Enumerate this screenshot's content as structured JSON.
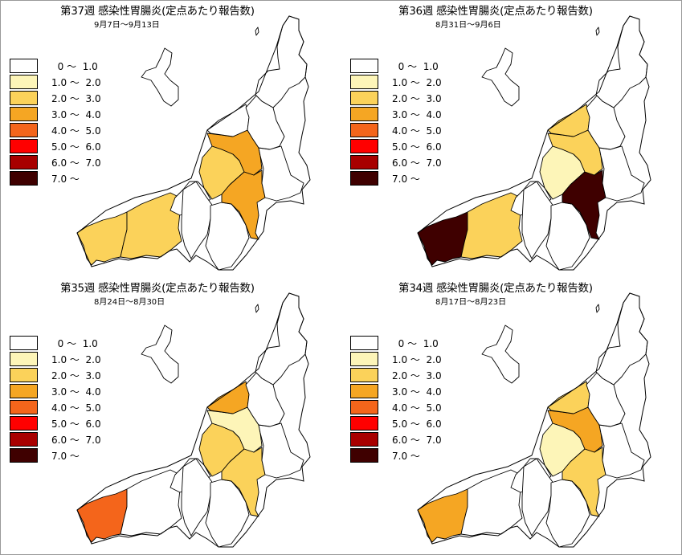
{
  "legend": {
    "items": [
      {
        "label": "  0 〜  1.0",
        "color": "#ffffff"
      },
      {
        "label": "1.0 〜  2.0",
        "color": "#fdf5b8"
      },
      {
        "label": "2.0 〜  3.0",
        "color": "#fbd25a"
      },
      {
        "label": "3.0 〜  4.0",
        "color": "#f5a623"
      },
      {
        "label": "4.0 〜  5.0",
        "color": "#f4651b"
      },
      {
        "label": "5.0 〜  6.0",
        "color": "#ff0000"
      },
      {
        "label": "6.0 〜  7.0",
        "color": "#a80000"
      },
      {
        "label": "7.0 〜",
        "color": "#3f0000"
      }
    ]
  },
  "panels": [
    {
      "title": "第37週 感染性胃腸炎(定点あたり報告数)",
      "subtitle": "9月7日〜9月13日",
      "regions": {
        "joetsu": "#fbd25a",
        "itoigawa": "#fbd25a",
        "nagaoka": "#fbd25a",
        "sanjo": "#f5a623",
        "uonuma": "#f5a623",
        "niigata": "#ffffff",
        "shibata": "#ffffff",
        "murakami": "#ffffff",
        "niitsu": "#ffffff",
        "tokamachi": "#ffffff",
        "minamiuonuma": "#ffffff",
        "kashiwazaki": "#ffffff"
      }
    },
    {
      "title": "第36週 感染性胃腸炎(定点あたり報告数)",
      "subtitle": "8月31日〜9月6日",
      "regions": {
        "joetsu": "#fbd25a",
        "itoigawa": "#3f0000",
        "nagaoka": "#fdf5b8",
        "sanjo": "#fbd25a",
        "uonuma": "#3f0000",
        "niigata": "#fbd25a",
        "shibata": "#ffffff",
        "murakami": "#ffffff",
        "niitsu": "#ffffff",
        "tokamachi": "#ffffff",
        "minamiuonuma": "#ffffff",
        "kashiwazaki": "#ffffff"
      }
    },
    {
      "title": "第35週 感染性胃腸炎(定点あたり報告数)",
      "subtitle": "8月24日〜8月30日",
      "regions": {
        "joetsu": "#ffffff",
        "itoigawa": "#f4651b",
        "nagaoka": "#fbd25a",
        "sanjo": "#fdf5b8",
        "uonuma": "#fbd25a",
        "niigata": "#f5a623",
        "shibata": "#ffffff",
        "murakami": "#ffffff",
        "niitsu": "#ffffff",
        "tokamachi": "#ffffff",
        "minamiuonuma": "#ffffff",
        "kashiwazaki": "#ffffff"
      }
    },
    {
      "title": "第34週 感染性胃腸炎(定点あたり報告数)",
      "subtitle": "8月17日〜8月23日",
      "regions": {
        "joetsu": "#ffffff",
        "itoigawa": "#f5a623",
        "nagaoka": "#fdf5b8",
        "sanjo": "#f5a623",
        "uonuma": "#fbd25a",
        "niigata": "#fbd25a",
        "shibata": "#ffffff",
        "murakami": "#ffffff",
        "niitsu": "#ffffff",
        "tokamachi": "#ffffff",
        "minamiuonuma": "#ffffff",
        "kashiwazaki": "#ffffff"
      }
    }
  ]
}
